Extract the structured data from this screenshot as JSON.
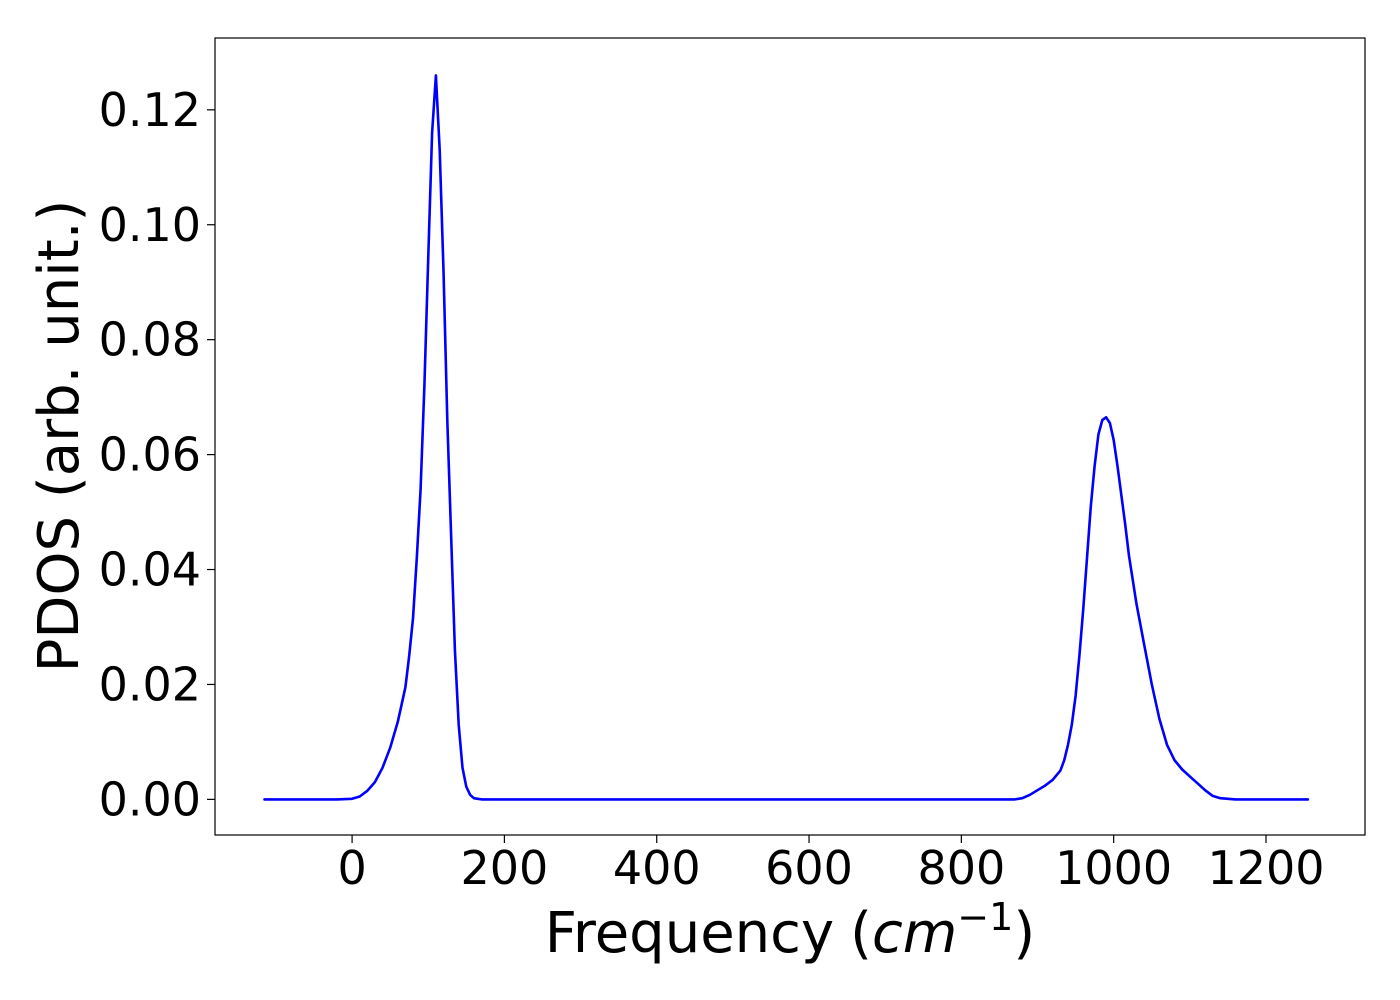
{
  "chart_data": {
    "type": "line",
    "xlabel": "Frequency",
    "xlabel_unit_open": "(",
    "xlabel_unit_base": "cm",
    "xlabel_unit_exp": "−1",
    "xlabel_unit_close": ")",
    "ylabel": "PDOS (arb. unit.)",
    "xlim": [
      -180,
      1330
    ],
    "ylim": [
      -0.0062,
      0.1325
    ],
    "x_ticks": [
      0,
      200,
      400,
      600,
      800,
      1000,
      1200
    ],
    "x_tick_labels": [
      "0",
      "200",
      "400",
      "600",
      "800",
      "1000",
      "1200"
    ],
    "y_ticks": [
      0.0,
      0.02,
      0.04,
      0.06,
      0.08,
      0.1,
      0.12
    ],
    "y_tick_labels": [
      "0.00",
      "0.02",
      "0.04",
      "0.06",
      "0.08",
      "0.10",
      "0.12"
    ],
    "grid": false,
    "legend": "none",
    "series": [
      {
        "color": "#0000ff",
        "x": [
          -115,
          -60,
          -20,
          0,
          10,
          20,
          30,
          40,
          50,
          60,
          70,
          75,
          80,
          85,
          90,
          95,
          100,
          105,
          110,
          115,
          120,
          125,
          130,
          135,
          140,
          145,
          150,
          155,
          160,
          165,
          170,
          180,
          200,
          300,
          400,
          500,
          600,
          700,
          800,
          870,
          880,
          890,
          900,
          910,
          920,
          930,
          935,
          940,
          945,
          950,
          955,
          960,
          965,
          970,
          975,
          980,
          985,
          990,
          995,
          1000,
          1005,
          1010,
          1015,
          1020,
          1030,
          1040,
          1050,
          1060,
          1070,
          1080,
          1090,
          1100,
          1110,
          1120,
          1130,
          1140,
          1150,
          1160,
          1180,
          1200,
          1255
        ],
        "y": [
          0.0,
          0.0,
          0.0,
          0.0001,
          0.0005,
          0.0015,
          0.003,
          0.0055,
          0.009,
          0.0135,
          0.0195,
          0.025,
          0.0315,
          0.042,
          0.054,
          0.072,
          0.094,
          0.116,
          0.126,
          0.113,
          0.092,
          0.066,
          0.046,
          0.026,
          0.013,
          0.0055,
          0.0022,
          0.0008,
          0.0002,
          0.0001,
          0.0,
          0.0,
          0.0,
          0.0,
          0.0,
          0.0,
          0.0,
          0.0,
          0.0,
          0.0,
          0.0002,
          0.0008,
          0.0016,
          0.0024,
          0.0034,
          0.005,
          0.0068,
          0.0095,
          0.013,
          0.018,
          0.025,
          0.033,
          0.042,
          0.051,
          0.058,
          0.0635,
          0.066,
          0.0665,
          0.0655,
          0.0625,
          0.058,
          0.053,
          0.048,
          0.0425,
          0.034,
          0.027,
          0.02,
          0.014,
          0.0095,
          0.0068,
          0.0052,
          0.004,
          0.0028,
          0.0016,
          0.0006,
          0.0002,
          0.0001,
          0.0,
          0.0,
          0.0,
          0.0
        ]
      }
    ]
  }
}
